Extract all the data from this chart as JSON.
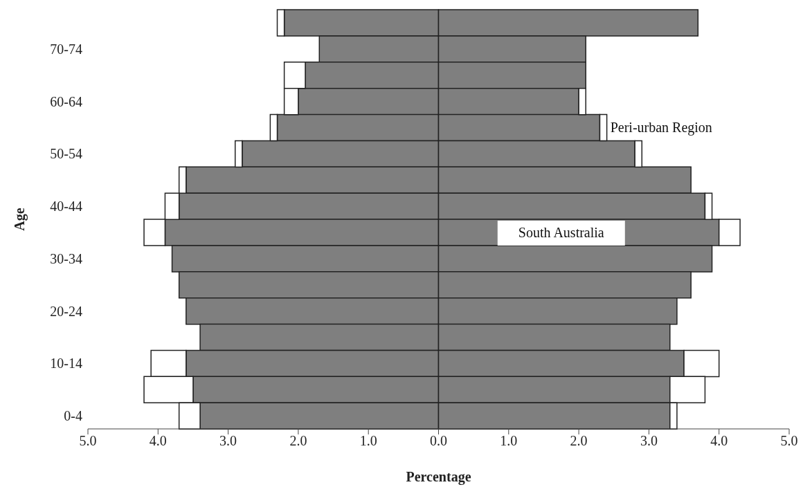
{
  "chart_data": {
    "type": "bar",
    "orientation": "horizontal",
    "stacked": true,
    "xlabel": "Percentage",
    "ylabel": "Age",
    "categories": [
      null,
      "70-74",
      null,
      "60-64",
      null,
      "50-54",
      null,
      "40-44",
      null,
      "30-34",
      null,
      "20-24",
      null,
      "10-14",
      null,
      "0-4"
    ],
    "series": [
      {
        "color": "#7f7f7f",
        "values": [
          -2.2,
          -1.7,
          -1.9,
          -2.0,
          -2.3,
          -2.8,
          -3.6,
          -3.7,
          -3.9,
          -3.8,
          -3.7,
          -3.6,
          -3.4,
          -3.6,
          -3.5,
          -3.4
        ]
      },
      {
        "color": "#7f7f7f",
        "values": [
          3.7,
          2.1,
          2.1,
          2.0,
          2.3,
          2.8,
          3.6,
          3.8,
          4.0,
          3.9,
          3.6,
          3.4,
          3.3,
          3.5,
          3.3,
          3.3
        ]
      },
      {
        "color": "#ffffff",
        "values": [
          -0.1,
          null,
          -0.3,
          -0.2,
          -0.1,
          -0.1,
          -0.1,
          -0.2,
          -0.3,
          null,
          null,
          null,
          null,
          -0.5,
          -0.7,
          -0.3
        ]
      },
      {
        "color": "#ffffff",
        "values": [
          null,
          null,
          null,
          0.1,
          0.1,
          0.1,
          null,
          0.1,
          0.3,
          null,
          null,
          null,
          null,
          0.5,
          0.5,
          0.1
        ]
      }
    ],
    "xlim": [
      -5,
      5
    ],
    "xticks": [
      {
        "value": -5,
        "label": "5.0"
      },
      {
        "value": -4,
        "label": "4.0"
      },
      {
        "value": -3,
        "label": "3.0"
      },
      {
        "value": -2,
        "label": "2.0"
      },
      {
        "value": -1,
        "label": "1.0"
      },
      {
        "value": 0,
        "label": "0.0"
      },
      {
        "value": 1,
        "label": "1.0"
      },
      {
        "value": 2,
        "label": "2.0"
      },
      {
        "value": 3,
        "label": "3.0"
      },
      {
        "value": 4,
        "label": "4.0"
      },
      {
        "value": 5,
        "label": "5.0"
      }
    ],
    "annotations": [
      "Peri-urban Region",
      "South Australia"
    ],
    "grid": false,
    "legend": false
  }
}
